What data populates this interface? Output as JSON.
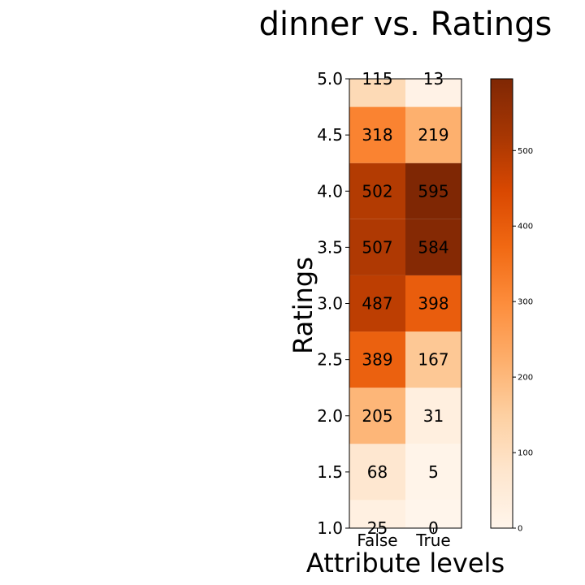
{
  "chart_data": {
    "type": "heatmap",
    "title": "dinner vs. Ratings",
    "xlabel": "Attribute levels",
    "ylabel": "Ratings",
    "x_categories": [
      "False",
      "True"
    ],
    "y_ticks": [
      "1.0",
      "1.5",
      "2.0",
      "2.5",
      "3.0",
      "3.5",
      "4.0",
      "4.5",
      "5.0"
    ],
    "rows": [
      {
        "rating": "1.0",
        "values": [
          25,
          0
        ]
      },
      {
        "rating": "1.5",
        "values": [
          68,
          5
        ]
      },
      {
        "rating": "2.0",
        "values": [
          205,
          31
        ]
      },
      {
        "rating": "2.5",
        "values": [
          389,
          167
        ]
      },
      {
        "rating": "3.0",
        "values": [
          487,
          398
        ]
      },
      {
        "rating": "3.5",
        "values": [
          507,
          584
        ]
      },
      {
        "rating": "4.0",
        "values": [
          502,
          595
        ]
      },
      {
        "rating": "4.5",
        "values": [
          318,
          219
        ]
      },
      {
        "rating": "5.0",
        "values": [
          115,
          13
        ]
      }
    ],
    "colorbar": {
      "colormap": "Oranges",
      "min": 0,
      "max": 595,
      "ticks": [
        "0",
        "100",
        "200",
        "300",
        "400",
        "500"
      ]
    },
    "grid": false
  }
}
